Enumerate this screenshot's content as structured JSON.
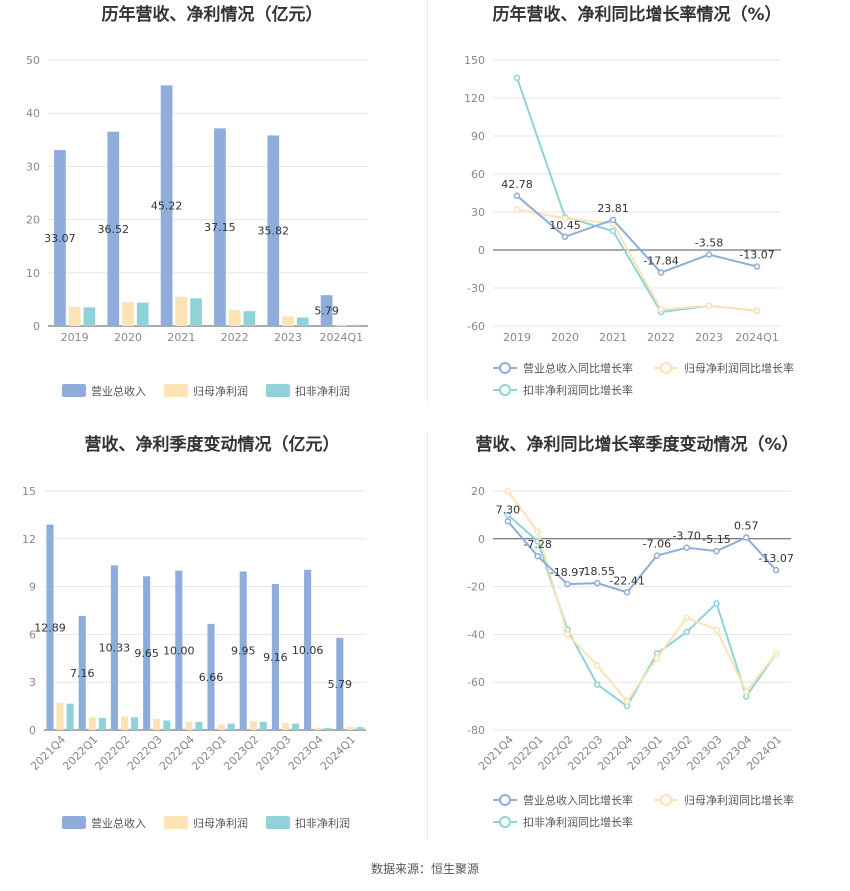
{
  "footer": {
    "label": "数据来源：",
    "source": "恒生聚源"
  },
  "colors": {
    "revenue": "#8eaddb",
    "net_profit": "#fce3b5",
    "deducted_profit": "#8fd3d9"
  },
  "chart_data": [
    {
      "id": "annual_values",
      "type": "bar",
      "title": "历年营收、净利情况（亿元）",
      "categories": [
        "2019",
        "2020",
        "2021",
        "2022",
        "2023",
        "2024Q1"
      ],
      "ylim": [
        0,
        50
      ],
      "yticks": [
        0,
        10,
        20,
        30,
        40,
        50
      ],
      "series": [
        {
          "name": "营业总收入",
          "color": "#8eaddb",
          "values": [
            33.07,
            36.52,
            45.22,
            37.15,
            35.82,
            5.79
          ],
          "labels": [
            "33.07",
            "36.52",
            "45.22",
            "37.15",
            "35.82",
            "5.79"
          ]
        },
        {
          "name": "归母净利润",
          "color": "#fce3b5",
          "values": [
            3.6,
            4.5,
            5.5,
            3.0,
            1.8,
            0.25
          ]
        },
        {
          "name": "扣非净利润",
          "color": "#8fd3d9",
          "values": [
            3.5,
            4.4,
            5.2,
            2.8,
            1.6,
            0.2
          ]
        }
      ],
      "grid": true,
      "legend": "bottom"
    },
    {
      "id": "annual_growth",
      "type": "line",
      "title": "历年营收、净利同比增长率情况（%）",
      "categories": [
        "2019",
        "2020",
        "2021",
        "2022",
        "2023",
        "2024Q1"
      ],
      "ylim": [
        -60,
        150
      ],
      "yticks": [
        -60,
        -30,
        0,
        30,
        60,
        90,
        120,
        150
      ],
      "series": [
        {
          "name": "营业总收入同比增长率",
          "color": "#8eaddb",
          "values": [
            42.78,
            10.45,
            23.81,
            -17.84,
            -3.58,
            -13.07
          ],
          "labels": [
            "42.78",
            "10.45",
            "23.81",
            "-17.84",
            "-3.58",
            "-13.07"
          ]
        },
        {
          "name": "归母净利润同比增长率",
          "color": "#fce3b5",
          "values": [
            32,
            25,
            21,
            -47,
            -44,
            -48
          ]
        },
        {
          "name": "扣非净利润同比增长率",
          "color": "#8fd3d9",
          "values": [
            136,
            26,
            15,
            -49,
            -44,
            -48
          ]
        }
      ],
      "grid": true,
      "legend": "bottom"
    },
    {
      "id": "quarterly_values",
      "type": "bar",
      "title": "营收、净利季度变动情况（亿元）",
      "categories": [
        "2021Q4",
        "2022Q1",
        "2022Q2",
        "2022Q3",
        "2022Q4",
        "2023Q1",
        "2023Q2",
        "2023Q3",
        "2023Q4",
        "2024Q1"
      ],
      "ylim": [
        0,
        15
      ],
      "yticks": [
        0,
        3,
        6,
        9,
        12,
        15
      ],
      "series": [
        {
          "name": "营业总收入",
          "color": "#8eaddb",
          "values": [
            12.89,
            7.16,
            10.33,
            9.65,
            10.0,
            6.66,
            9.95,
            9.16,
            10.06,
            5.79
          ],
          "labels": [
            "12.89",
            "7.16",
            "10.33",
            "9.65",
            "10.00",
            "6.66",
            "9.95",
            "9.16",
            "10.06",
            "5.79"
          ]
        },
        {
          "name": "归母净利润",
          "color": "#fce3b5",
          "values": [
            1.7,
            0.8,
            0.85,
            0.7,
            0.5,
            0.35,
            0.55,
            0.45,
            0.15,
            0.2
          ]
        },
        {
          "name": "扣非净利润",
          "color": "#8fd3d9",
          "values": [
            1.65,
            0.75,
            0.8,
            0.6,
            0.5,
            0.4,
            0.5,
            0.4,
            0.12,
            0.18
          ]
        }
      ],
      "grid": true,
      "legend": "bottom"
    },
    {
      "id": "quarterly_growth",
      "type": "line",
      "title": "营收、净利同比增长率季度变动情况（%）",
      "categories": [
        "2021Q4",
        "2022Q1",
        "2022Q2",
        "2022Q3",
        "2022Q4",
        "2023Q1",
        "2023Q2",
        "2023Q3",
        "2023Q4",
        "2024Q1"
      ],
      "ylim": [
        -80,
        20
      ],
      "yticks": [
        -80,
        -60,
        -40,
        -20,
        0,
        20
      ],
      "series": [
        {
          "name": "营业总收入同比增长率",
          "color": "#8eaddb",
          "values": [
            7.3,
            -7.28,
            -18.97,
            -18.55,
            -22.41,
            -7.06,
            -3.7,
            -5.15,
            0.57,
            -13.07
          ],
          "labels": [
            "7.30",
            "-7.28",
            "-18.97",
            "-18.55",
            "-22.41",
            "-7.06",
            "-3.70",
            "-5.15",
            "0.57",
            "-13.07"
          ]
        },
        {
          "name": "归母净利润同比增长率",
          "color": "#fce3b5",
          "values": [
            20,
            3,
            -40,
            -53,
            -68,
            -50,
            -33,
            -38,
            -64,
            -48
          ]
        },
        {
          "name": "扣非净利润同比增长率",
          "color": "#8fd3d9",
          "values": [
            10,
            -1,
            -38,
            -61,
            -70,
            -48,
            -39,
            -27,
            -66,
            -48
          ]
        }
      ],
      "grid": true,
      "legend": "bottom"
    }
  ]
}
